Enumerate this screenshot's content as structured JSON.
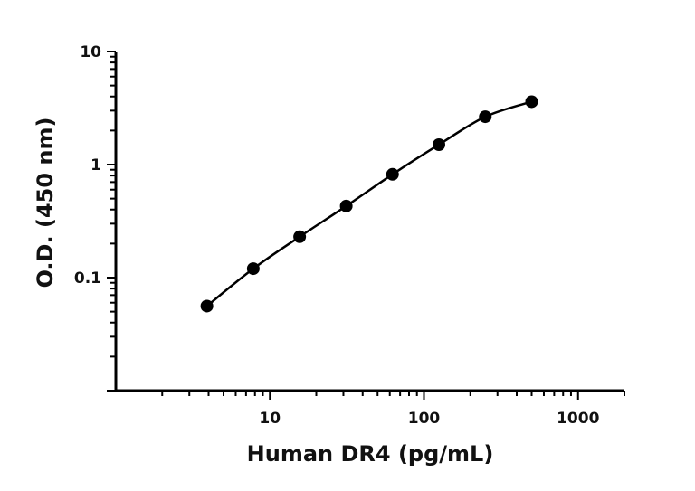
{
  "chart_data": {
    "type": "scatter",
    "title": "",
    "xlabel": "Human DR4 (pg/mL)",
    "ylabel": "O.D. (450 nm)",
    "x_scale": "log",
    "y_scale": "log",
    "xlim": [
      1,
      2000
    ],
    "ylim": [
      0.01,
      10
    ],
    "x_ticks": [
      {
        "value": 10,
        "label": "10"
      },
      {
        "value": 100,
        "label": "100"
      },
      {
        "value": 1000,
        "label": "1000"
      }
    ],
    "y_ticks": [
      {
        "value": 0.1,
        "label": "0.1"
      },
      {
        "value": 1,
        "label": "1"
      },
      {
        "value": 10,
        "label": "10"
      }
    ],
    "grid": false,
    "legend": "none",
    "series": [
      {
        "points": [
          {
            "x": 3.9,
            "y": 0.056
          },
          {
            "x": 7.8,
            "y": 0.12
          },
          {
            "x": 15.6,
            "y": 0.23
          },
          {
            "x": 31.3,
            "y": 0.43
          },
          {
            "x": 62.5,
            "y": 0.82
          },
          {
            "x": 125,
            "y": 1.5
          },
          {
            "x": 250,
            "y": 2.65
          },
          {
            "x": 500,
            "y": 3.6
          }
        ],
        "fit_curve": true,
        "color": "#000000"
      }
    ]
  }
}
